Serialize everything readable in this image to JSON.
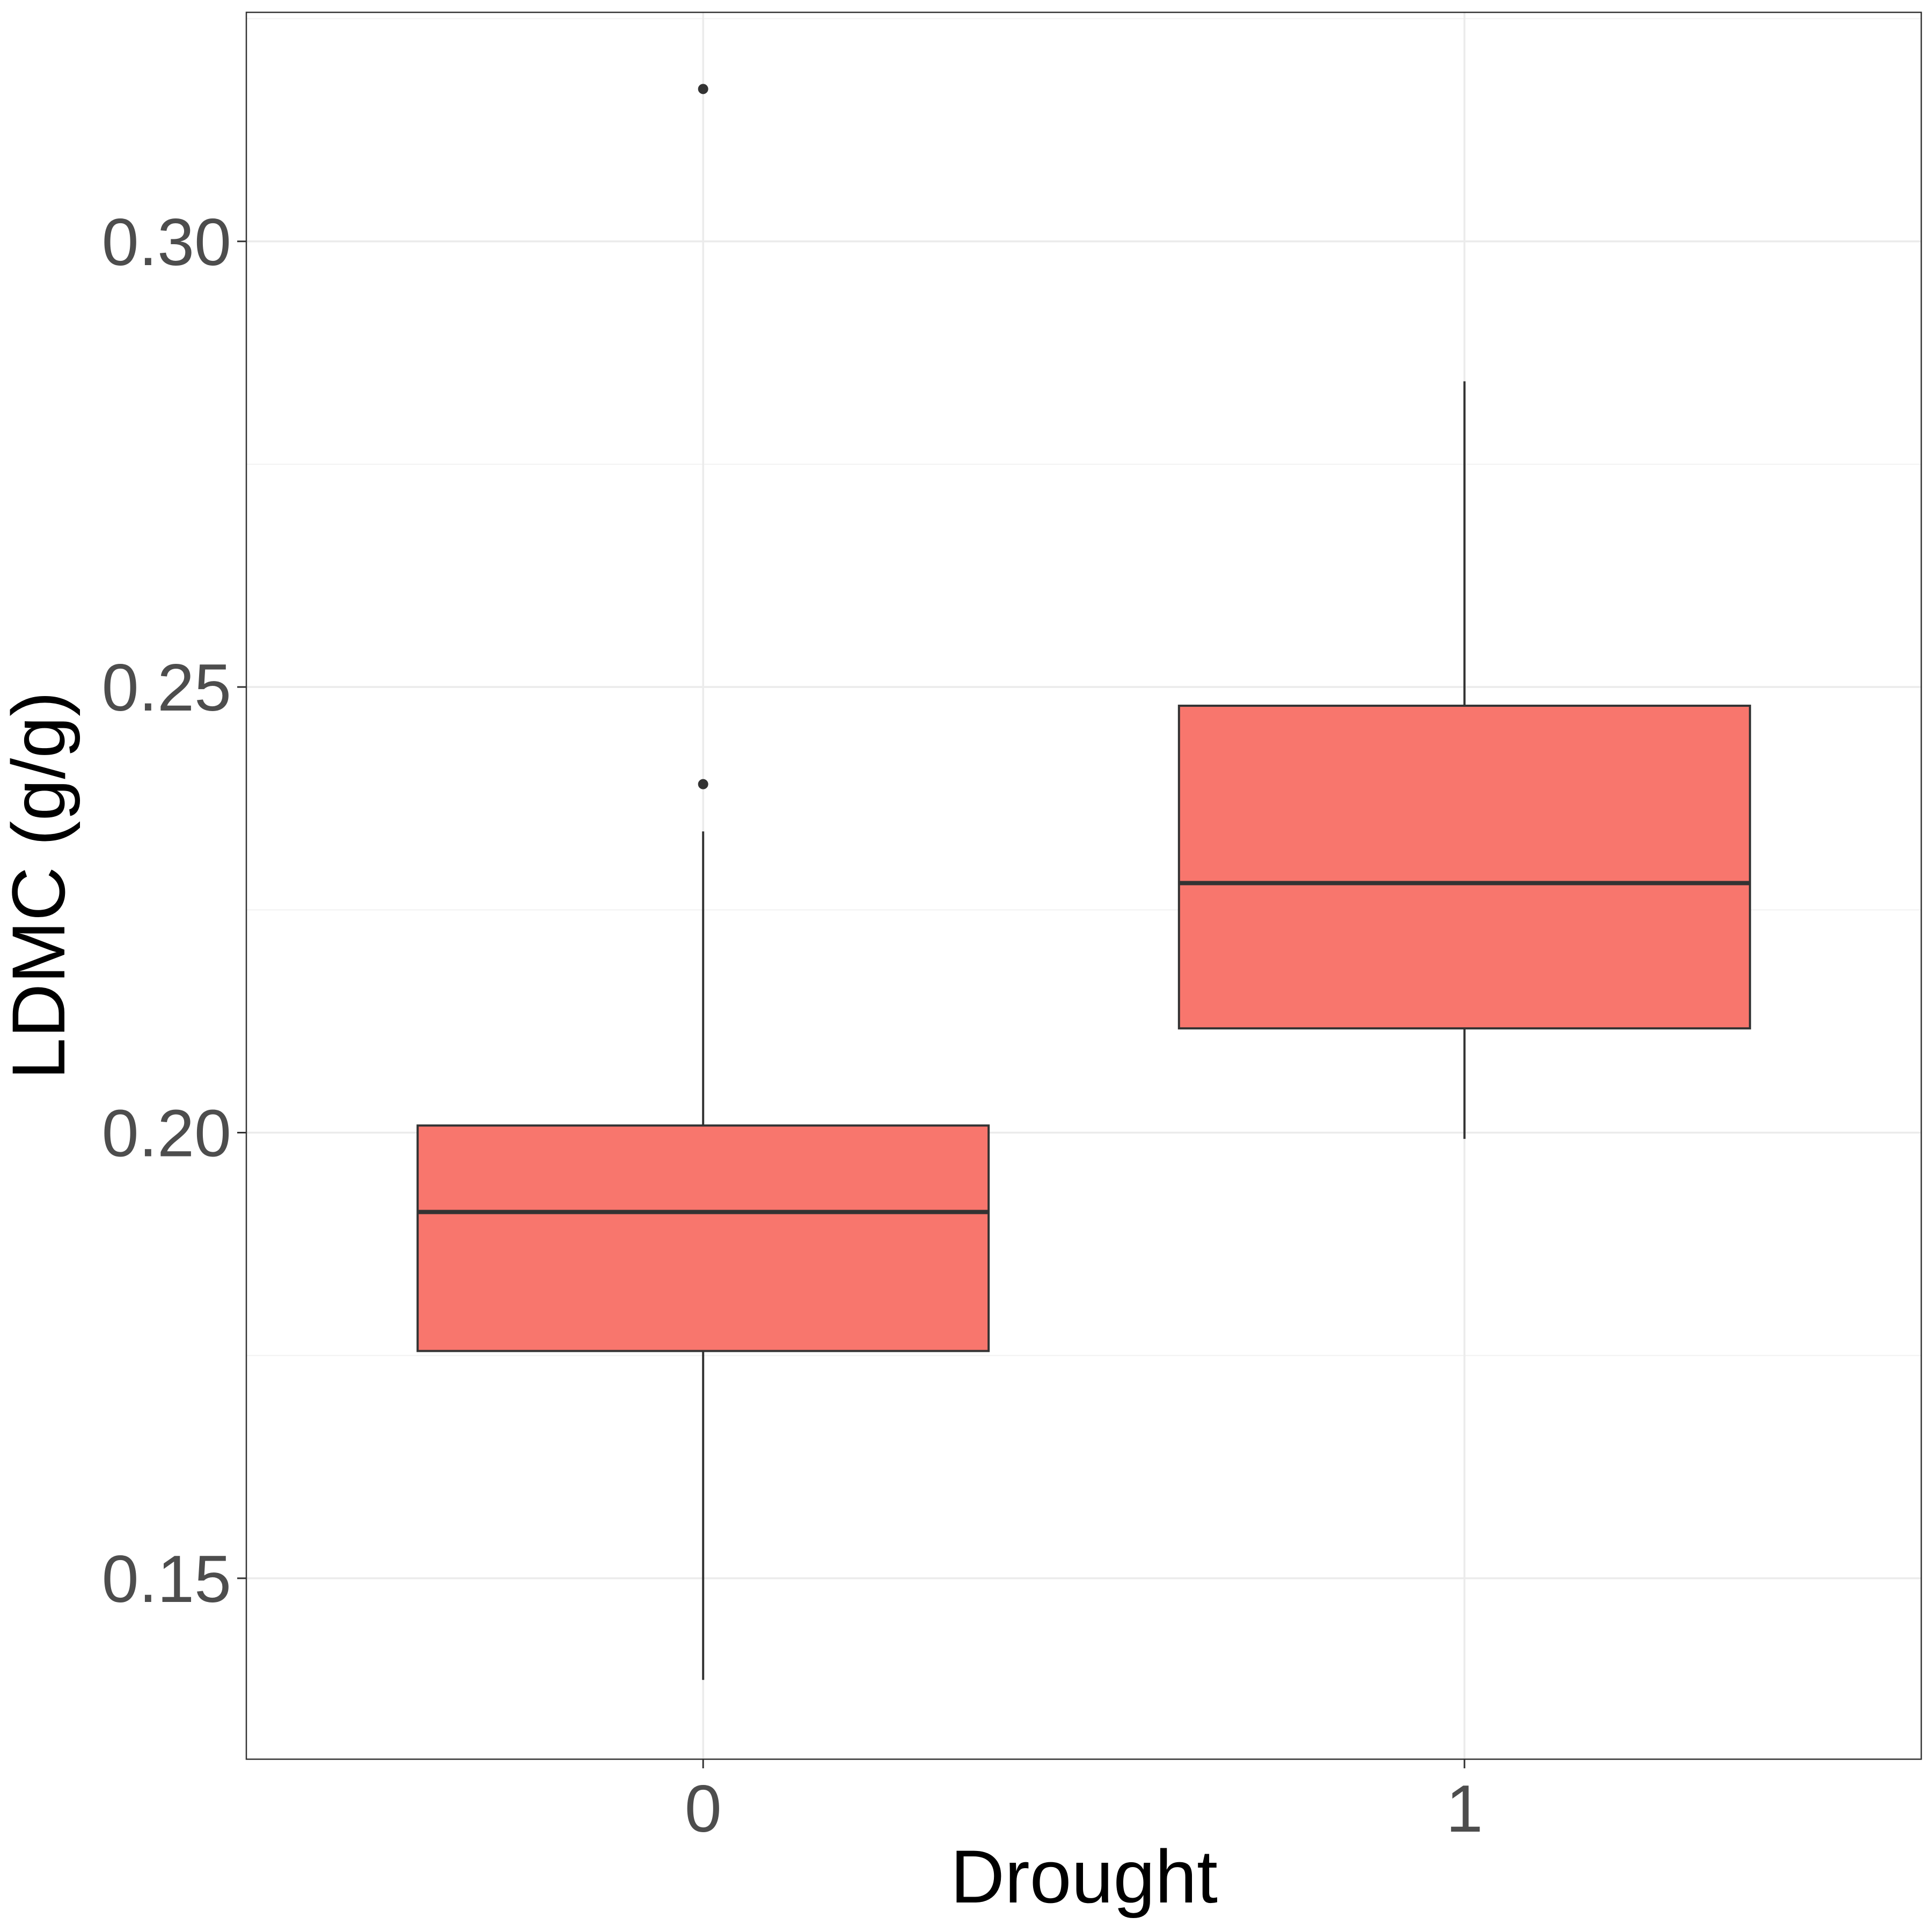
{
  "chart_data": {
    "type": "boxplot",
    "title": "",
    "xlabel": "Drought",
    "ylabel": "LDMC (g/g)",
    "ylim": [
      0.1297,
      0.3257
    ],
    "yticks": [
      0.15,
      0.2,
      0.25,
      0.3
    ],
    "ytick_labels": [
      "0.15",
      "0.20",
      "0.25",
      "0.30"
    ],
    "categories": [
      "0",
      "1"
    ],
    "grid": true,
    "legend": "none",
    "fill_color": "#F8766D",
    "outline_color": "#333333",
    "boxes": [
      {
        "category": "0",
        "whisker_low": 0.1386,
        "q1": 0.1755,
        "median": 0.1911,
        "q3": 0.2008,
        "whisker_high": 0.2338,
        "outliers": [
          0.3171,
          0.2391
        ]
      },
      {
        "category": "1",
        "whisker_low": 0.1993,
        "q1": 0.2117,
        "median": 0.228,
        "q3": 0.2479,
        "whisker_high": 0.2843,
        "outliers": []
      }
    ]
  }
}
